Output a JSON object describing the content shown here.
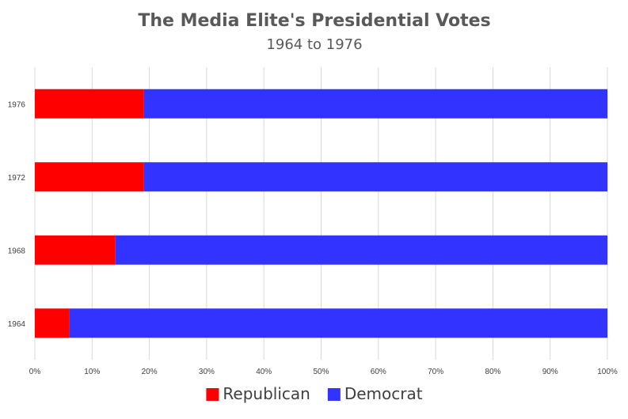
{
  "chart_data": {
    "type": "bar",
    "orientation": "horizontal",
    "stacked": "percent",
    "title": "The Media Elite's Presidential Votes",
    "subtitle": "1964 to 1976",
    "categories": [
      "1964",
      "1968",
      "1972",
      "1976"
    ],
    "series": [
      {
        "name": "Republican",
        "color": "#ff0000",
        "values": [
          6,
          14,
          19,
          19
        ]
      },
      {
        "name": "Democrat",
        "color": "#3333ff",
        "values": [
          94,
          86,
          81,
          81
        ]
      }
    ],
    "x_ticks": [
      "0%",
      "10%",
      "20%",
      "30%",
      "40%",
      "50%",
      "60%",
      "70%",
      "80%",
      "90%",
      "100%"
    ],
    "xlim": [
      0,
      100
    ],
    "xlabel": "",
    "ylabel": "",
    "grid": "vertical",
    "legend": "bottom-center"
  }
}
